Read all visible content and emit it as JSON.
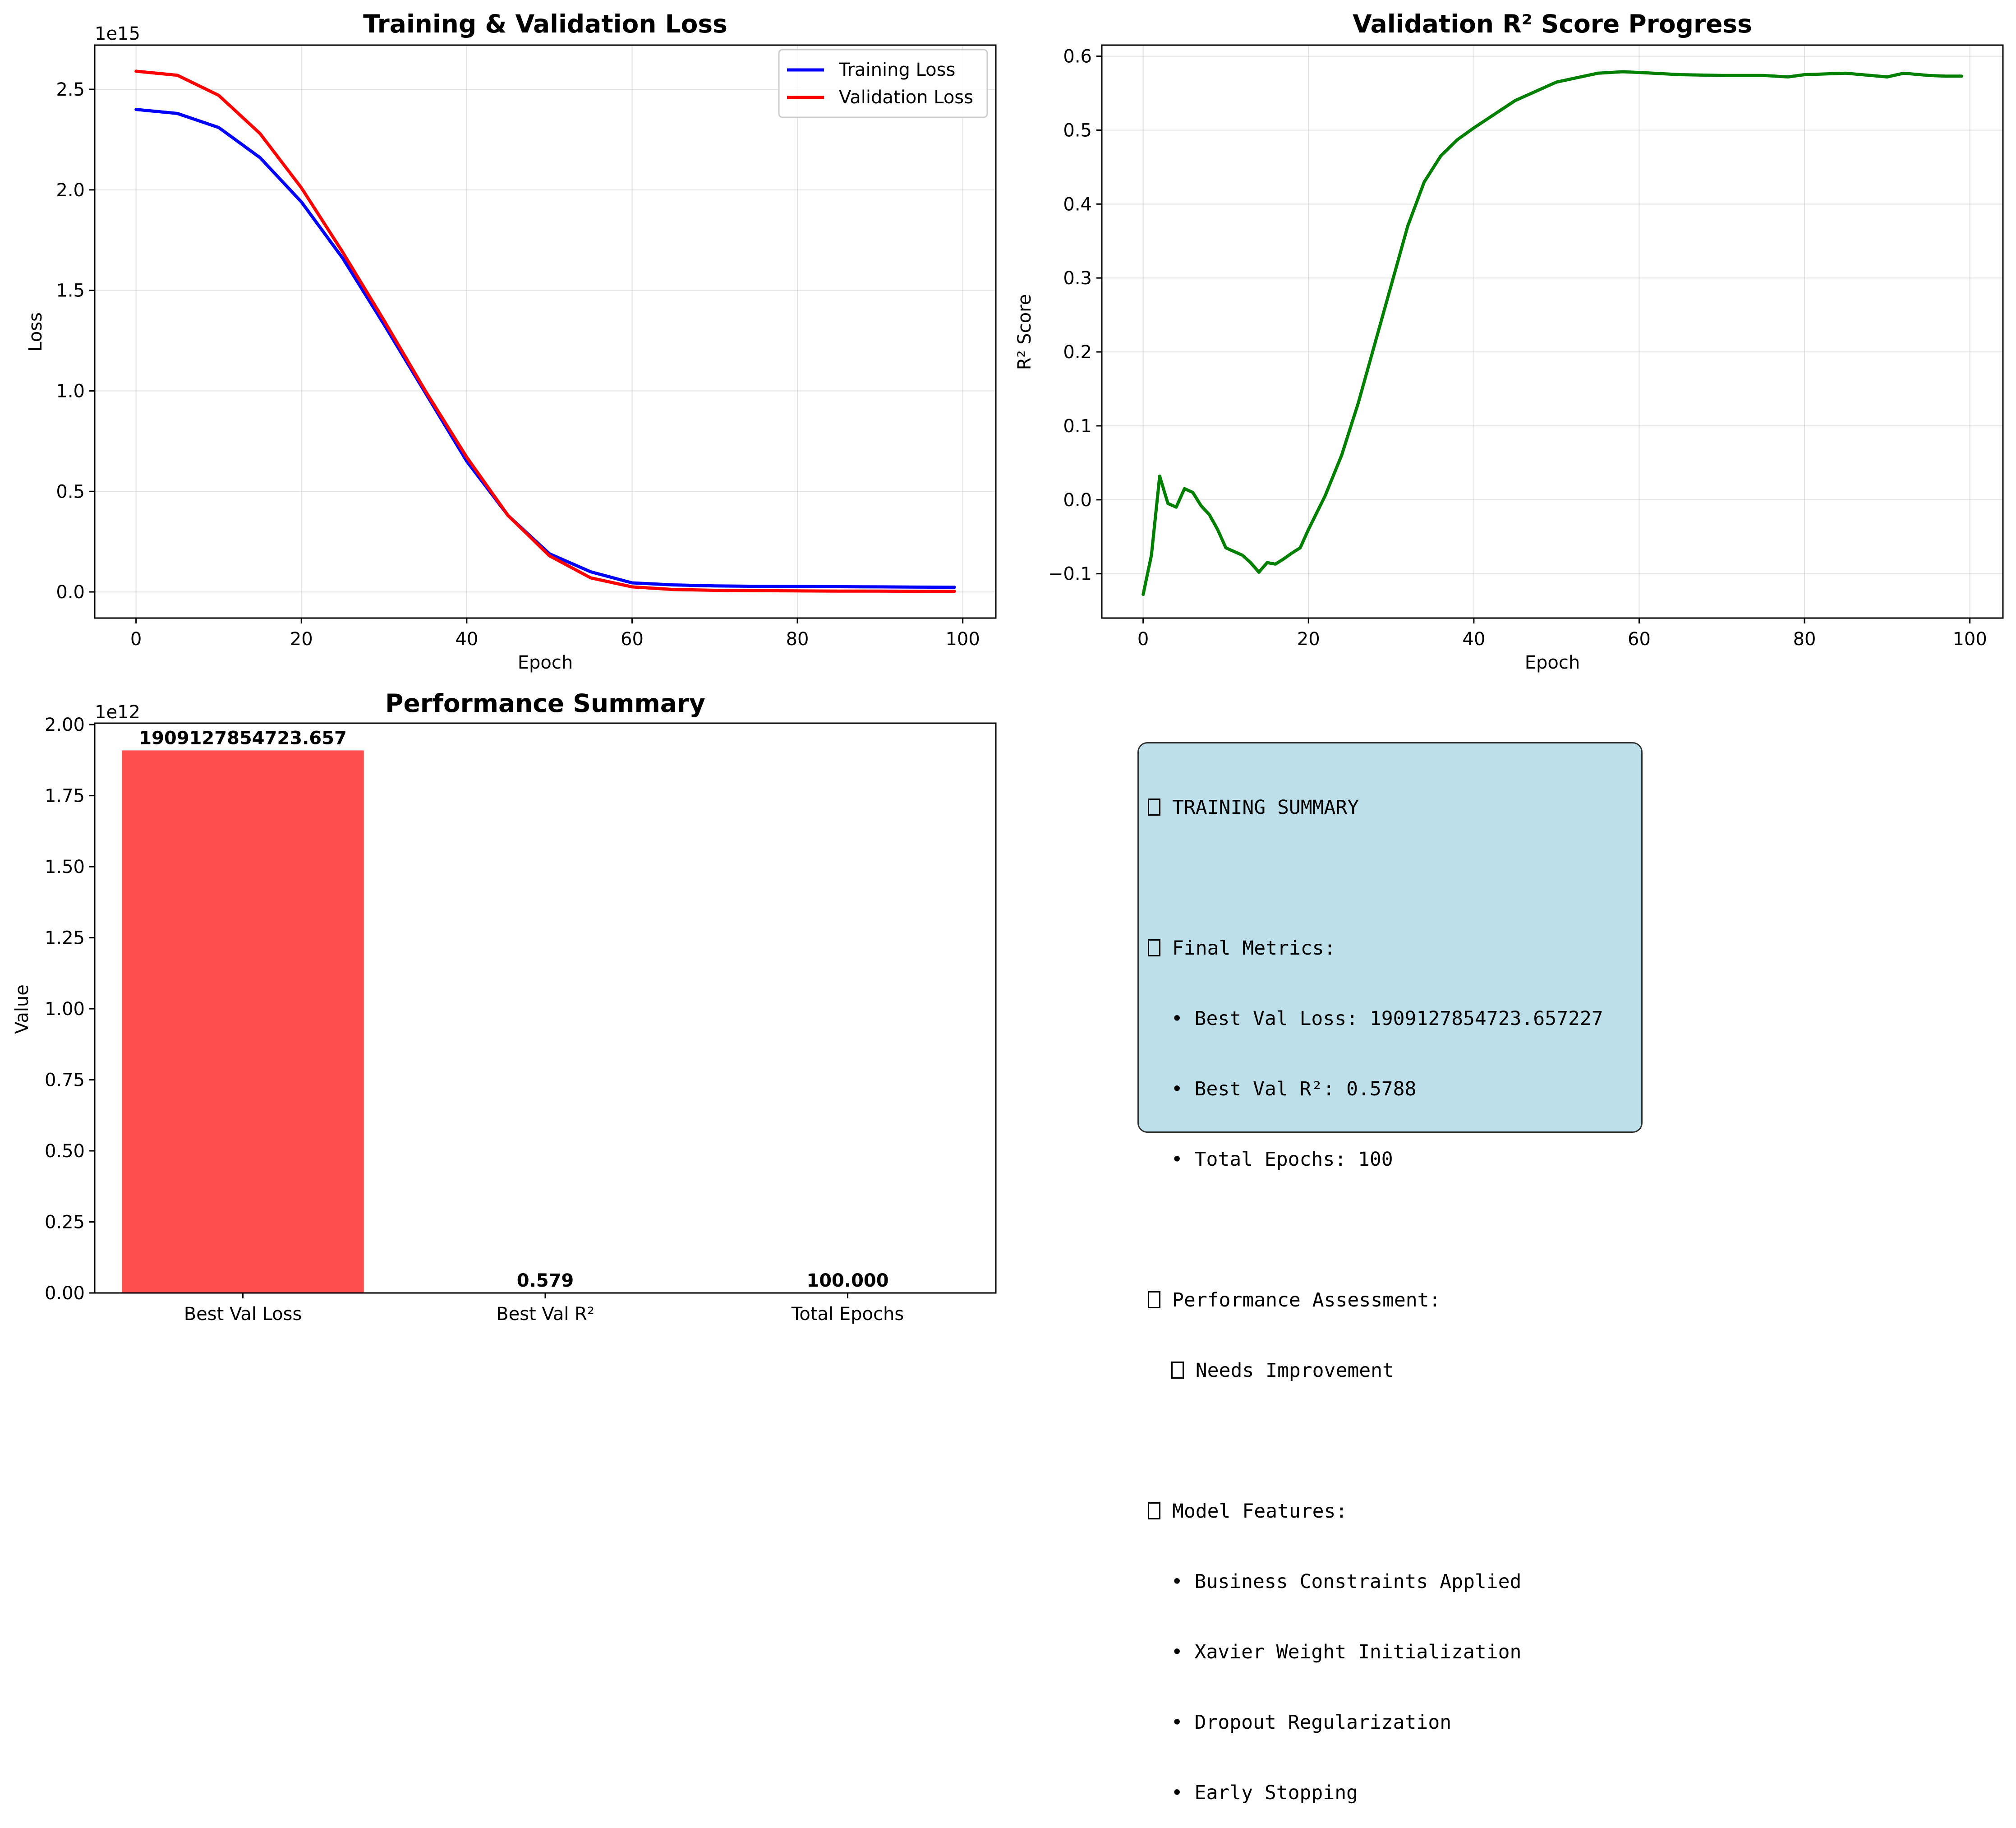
{
  "chart_data": [
    {
      "type": "line",
      "title": "Training & Validation Loss",
      "xlabel": "Epoch",
      "ylabel": "Loss",
      "offset_label": "1e15",
      "xlim": [
        -5,
        104
      ],
      "ylim": [
        -0.13,
        2.72
      ],
      "xticks": [
        0,
        20,
        40,
        60,
        80,
        100
      ],
      "yticks": [
        0.0,
        0.5,
        1.0,
        1.5,
        2.0,
        2.5
      ],
      "ytick_labels": [
        "0.0",
        "0.5",
        "1.0",
        "1.5",
        "2.0",
        "2.5"
      ],
      "grid": true,
      "legend": "top-right",
      "x": [
        0,
        5,
        10,
        15,
        20,
        25,
        30,
        35,
        40,
        45,
        50,
        55,
        60,
        65,
        70,
        75,
        80,
        85,
        90,
        95,
        99
      ],
      "series": [
        {
          "name": "Training Loss",
          "color": "#0000ff",
          "values": [
            2.4,
            2.38,
            2.31,
            2.16,
            1.94,
            1.66,
            1.33,
            0.99,
            0.65,
            0.38,
            0.19,
            0.1,
            0.045,
            0.035,
            0.03,
            0.028,
            0.027,
            0.026,
            0.025,
            0.024,
            0.023
          ]
        },
        {
          "name": "Validation Loss",
          "color": "#ff0000",
          "values": [
            2.59,
            2.57,
            2.47,
            2.28,
            2.01,
            1.69,
            1.35,
            1.0,
            0.67,
            0.38,
            0.18,
            0.07,
            0.025,
            0.012,
            0.008,
            0.006,
            0.005,
            0.004,
            0.004,
            0.003,
            0.003
          ]
        }
      ]
    },
    {
      "type": "line",
      "title": "Validation R² Score Progress",
      "xlabel": "Epoch",
      "ylabel": "R² Score",
      "xlim": [
        -5,
        104
      ],
      "ylim": [
        -0.16,
        0.615
      ],
      "xticks": [
        0,
        20,
        40,
        60,
        80,
        100
      ],
      "yticks": [
        -0.1,
        0.0,
        0.1,
        0.2,
        0.3,
        0.4,
        0.5,
        0.6
      ],
      "ytick_labels": [
        "−0.1",
        "0.0",
        "0.1",
        "0.2",
        "0.3",
        "0.4",
        "0.5",
        "0.6"
      ],
      "grid": true,
      "x": [
        0,
        1,
        2,
        3,
        4,
        5,
        6,
        7,
        8,
        9,
        10,
        12,
        13,
        14,
        15,
        16,
        17,
        18,
        19,
        20,
        22,
        24,
        26,
        28,
        30,
        32,
        34,
        36,
        38,
        40,
        45,
        50,
        55,
        58,
        60,
        65,
        70,
        75,
        78,
        80,
        85,
        90,
        92,
        95,
        97,
        99
      ],
      "series": [
        {
          "name": "",
          "color": "#008000",
          "values": [
            -0.128,
            -0.075,
            0.032,
            -0.005,
            -0.01,
            0.015,
            0.01,
            -0.008,
            -0.02,
            -0.04,
            -0.065,
            -0.075,
            -0.085,
            -0.098,
            -0.085,
            -0.087,
            -0.08,
            -0.072,
            -0.065,
            -0.04,
            0.005,
            0.06,
            0.13,
            0.21,
            0.29,
            0.37,
            0.43,
            0.465,
            0.487,
            0.503,
            0.54,
            0.565,
            0.577,
            0.579,
            0.578,
            0.575,
            0.574,
            0.574,
            0.572,
            0.575,
            0.577,
            0.572,
            0.577,
            0.574,
            0.573,
            0.573
          ]
        }
      ]
    },
    {
      "type": "bar",
      "title": "Performance Summary",
      "xlabel": "",
      "ylabel": "Value",
      "offset_label": "1e12",
      "ylim": [
        0,
        2.005
      ],
      "yticks": [
        0.0,
        0.25,
        0.5,
        0.75,
        1.0,
        1.25,
        1.5,
        1.75,
        2.0
      ],
      "ytick_labels": [
        "0.00",
        "0.25",
        "0.50",
        "0.75",
        "1.00",
        "1.25",
        "1.50",
        "1.75",
        "2.00"
      ],
      "categories": [
        "Best Val Loss",
        "Best Val R²",
        "Total Epochs"
      ],
      "values": [
        1909127854723.657,
        0.579,
        100.0
      ],
      "value_labels": [
        "1909127854723.657",
        "0.579",
        "100.000"
      ],
      "colors": [
        "#ff4c4c",
        "#4c80ff",
        "#4cb84c"
      ]
    }
  ],
  "summary": {
    "title": "TRAINING SUMMARY",
    "final_metrics_heading": "Final Metrics:",
    "best_val_loss": "  • Best Val Loss: 1909127854723.657227",
    "best_val_r2": "  • Best Val R²: 0.5788",
    "total_epochs": "  • Total Epochs: 100",
    "assessment_heading": "Performance Assessment:",
    "assessment": "Needs Improvement",
    "features_heading": "Model Features:",
    "features": [
      "  • Business Constraints Applied",
      "  • Xavier Weight Initialization",
      "  • Dropout Regularization",
      "  • Early Stopping"
    ],
    "box_color": "#add8e6"
  }
}
